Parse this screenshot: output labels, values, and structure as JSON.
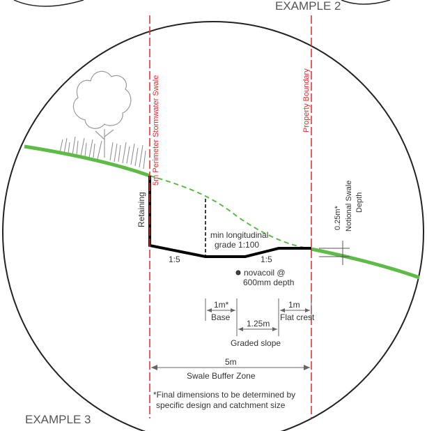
{
  "labels": {
    "example_top": "EXAMPLE 2",
    "example_bottom": "EXAMPLE 3",
    "perimeter_swale": "5m Perimeter Stormwater Swale",
    "property_boundary": "Property Boundary",
    "retaining": "Retaining",
    "notional_depth_value": "0.25m*",
    "notional_depth_line1": "Notional Swale",
    "notional_depth_line2": "Depth",
    "grade_line1": "min longitudinal",
    "grade_line2": "grade 1:100",
    "slope_left": "1:5",
    "slope_right": "1:5",
    "novacoil_line1": "novacoil @",
    "novacoil_line2": "600mm depth",
    "base_value": "1m*",
    "base_label": "Base",
    "flat_value": "1m",
    "flat_label": "Flat crest",
    "graded_value": "1.25m",
    "graded_label": "Graded slope",
    "buffer_value": "5m",
    "buffer_label": "Swale Buffer Zone",
    "note_line1": "*Final dimensions to be determined by",
    "note_line2": "specific design and catchment size"
  },
  "colors": {
    "ground": "#5dbb46",
    "boundary": "#e8262a",
    "structure": "#000000",
    "dimension": "#666666",
    "circle": "#222222"
  },
  "icons": {
    "tree": "tree-icon",
    "grass": "grass-icon",
    "pipe": "novacoil-pipe-icon"
  }
}
